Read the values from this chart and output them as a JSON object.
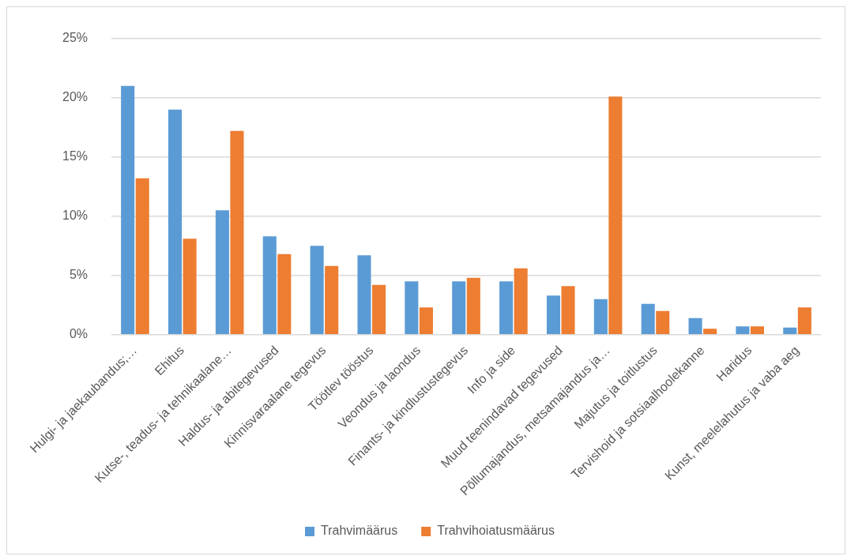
{
  "chart_data": {
    "type": "bar",
    "categories": [
      "Hulgi- ja jaekaubandus;…",
      "Ehitus",
      "Kutse-, teadus- ja tehnikaalane…",
      "Haldus- ja abitegevused",
      "Kinnisvaraalane tegevus",
      "Töötlev tööstus",
      "Veondus ja laondus",
      "Finants- ja kindlustustegevus",
      "Info ja side",
      "Muud teenindavad tegevused",
      "Põllumajandus, metsamajandus ja…",
      "Majutus ja toitlustus",
      "Tervishoid ja sotsiaalhoolekanne",
      "Haridus",
      "Kunst, meelelahutus ja vaba aeg"
    ],
    "series": [
      {
        "name": "Trahvimäärus",
        "color": "#5b9bd5",
        "values": [
          21.0,
          19.0,
          10.5,
          8.3,
          7.5,
          6.7,
          4.5,
          4.5,
          4.5,
          3.3,
          3.0,
          2.6,
          1.4,
          0.7,
          0.6
        ]
      },
      {
        "name": "Trahvihoiatusmäärus",
        "color": "#ed7d31",
        "values": [
          13.2,
          8.1,
          17.2,
          6.8,
          5.8,
          4.2,
          2.3,
          4.8,
          5.6,
          4.1,
          20.1,
          2.0,
          0.5,
          0.7,
          2.3
        ]
      }
    ],
    "ylim": [
      0,
      25
    ],
    "yticks": [
      {
        "value": 0,
        "label": "0%"
      },
      {
        "value": 5,
        "label": "5%"
      },
      {
        "value": 10,
        "label": "10%"
      },
      {
        "value": 15,
        "label": "15%"
      },
      {
        "value": 20,
        "label": "20%"
      },
      {
        "value": 25,
        "label": "25%"
      }
    ],
    "grid": "y",
    "legend": "bottom"
  }
}
